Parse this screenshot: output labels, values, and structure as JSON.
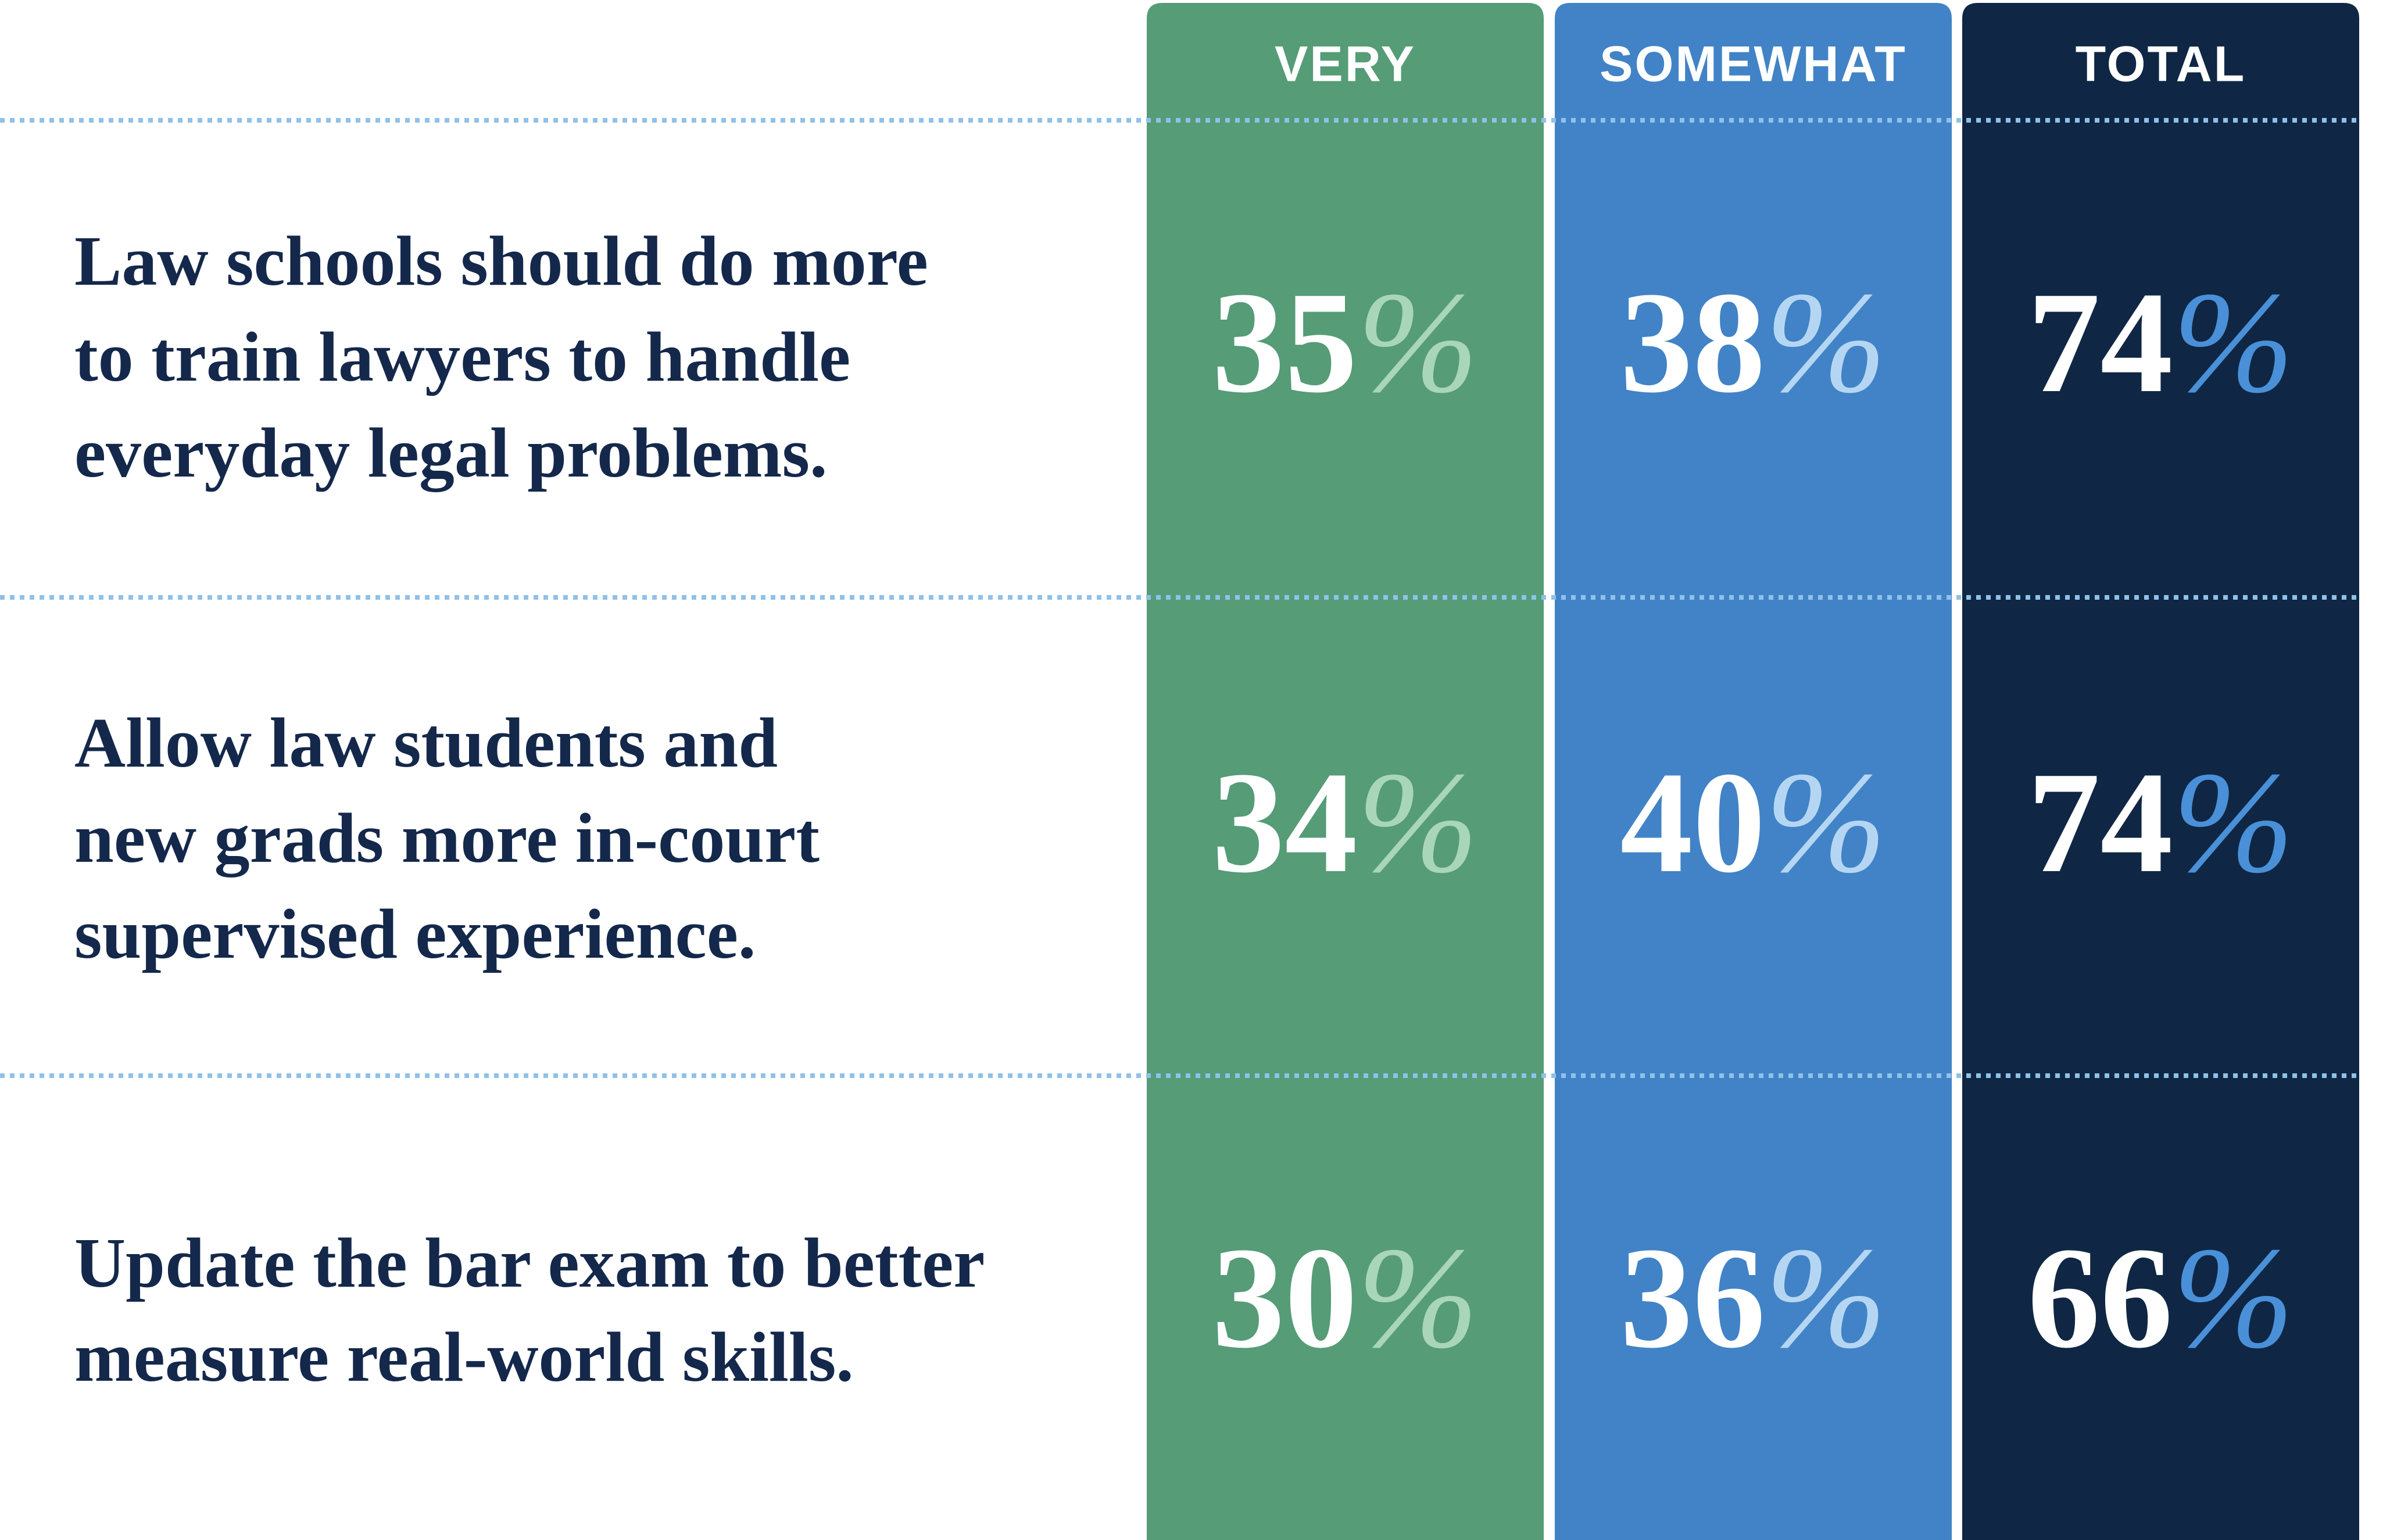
{
  "table": {
    "columns": [
      {
        "header": "VERY",
        "color": "#559c77",
        "sign_color": "#a9d5b8"
      },
      {
        "header": "SOMEWHAT",
        "color": "#4183c6",
        "sign_color": "#b5d6f3"
      },
      {
        "header": "TOTAL",
        "color": "#0f2744",
        "sign_color": "#4a90d9"
      }
    ],
    "rows": [
      {
        "label": [
          "Law schools should do more",
          "to train lawyers to handle",
          "everyday legal problems."
        ],
        "values": [
          35,
          38,
          74
        ]
      },
      {
        "label": [
          "Allow law students and",
          "new grads more in-court",
          "supervised experience."
        ],
        "values": [
          34,
          40,
          74
        ]
      },
      {
        "label": [
          "Update the bar exam to better",
          "measure real-world skills."
        ],
        "values": [
          30,
          36,
          66
        ]
      }
    ],
    "percent_sign": "%"
  }
}
